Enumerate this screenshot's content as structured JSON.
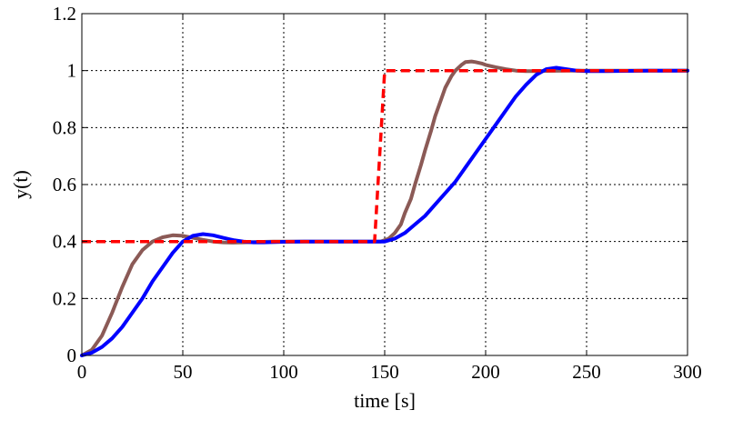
{
  "chart_data": {
    "type": "line",
    "title": "",
    "xlabel": "time [s]",
    "ylabel": "y(t)",
    "xlim": [
      0,
      300
    ],
    "ylim": [
      0,
      1.2
    ],
    "xticks": [
      0,
      50,
      100,
      150,
      200,
      250,
      300
    ],
    "yticks": [
      0,
      0.2,
      0.4,
      0.6,
      0.8,
      1,
      1.2
    ],
    "xtick_labels": [
      "0",
      "50",
      "100",
      "150",
      "200",
      "250",
      "300"
    ],
    "ytick_labels": [
      "0",
      "0.2",
      "0.4",
      "0.6",
      "0.8",
      "1",
      "1.2"
    ],
    "grid": true,
    "legend": "none",
    "series": [
      {
        "color": "#8b5a56",
        "style": "solid",
        "x": [
          0,
          5,
          10,
          15,
          20,
          25,
          30,
          35,
          40,
          45,
          50,
          55,
          60,
          65,
          70,
          75,
          80,
          85,
          90,
          95,
          100,
          110,
          120,
          130,
          140,
          148,
          152,
          155,
          158,
          160,
          163,
          165,
          168,
          170,
          173,
          175,
          178,
          180,
          183,
          185,
          188,
          190,
          193,
          195,
          198,
          200,
          205,
          210,
          215,
          220,
          225,
          230,
          240,
          250,
          260,
          280,
          300
        ],
        "y": [
          0,
          0.02,
          0.07,
          0.15,
          0.24,
          0.32,
          0.37,
          0.4,
          0.415,
          0.422,
          0.42,
          0.413,
          0.406,
          0.4,
          0.397,
          0.396,
          0.397,
          0.398,
          0.399,
          0.4,
          0.4,
          0.4,
          0.4,
          0.4,
          0.4,
          0.4,
          0.41,
          0.43,
          0.46,
          0.5,
          0.55,
          0.6,
          0.67,
          0.72,
          0.79,
          0.84,
          0.9,
          0.94,
          0.98,
          1.0,
          1.02,
          1.03,
          1.032,
          1.03,
          1.025,
          1.02,
          1.012,
          1.005,
          1.0,
          0.998,
          0.998,
          0.999,
          1.0,
          1.0,
          1.0,
          1.0,
          1.0
        ]
      },
      {
        "color": "#0000ff",
        "style": "solid",
        "x": [
          0,
          5,
          10,
          15,
          20,
          25,
          30,
          35,
          40,
          45,
          50,
          55,
          60,
          65,
          70,
          75,
          80,
          85,
          90,
          100,
          110,
          120,
          130,
          140,
          145,
          150,
          155,
          160,
          165,
          170,
          175,
          180,
          185,
          190,
          195,
          200,
          205,
          210,
          215,
          220,
          225,
          230,
          235,
          240,
          245,
          250,
          260,
          280,
          300
        ],
        "y": [
          0,
          0.01,
          0.03,
          0.06,
          0.1,
          0.15,
          0.2,
          0.26,
          0.31,
          0.36,
          0.4,
          0.42,
          0.426,
          0.422,
          0.413,
          0.405,
          0.4,
          0.397,
          0.397,
          0.399,
          0.4,
          0.4,
          0.4,
          0.4,
          0.4,
          0.4,
          0.41,
          0.43,
          0.46,
          0.49,
          0.53,
          0.57,
          0.61,
          0.66,
          0.71,
          0.76,
          0.81,
          0.86,
          0.91,
          0.95,
          0.985,
          1.005,
          1.01,
          1.005,
          1.0,
          0.998,
          0.998,
          1.0,
          1.0
        ]
      },
      {
        "color": "#ff0000",
        "style": "dashed",
        "x": [
          0,
          145,
          150,
          300
        ],
        "y": [
          0.4,
          0.4,
          1.0,
          1.0
        ]
      }
    ]
  }
}
